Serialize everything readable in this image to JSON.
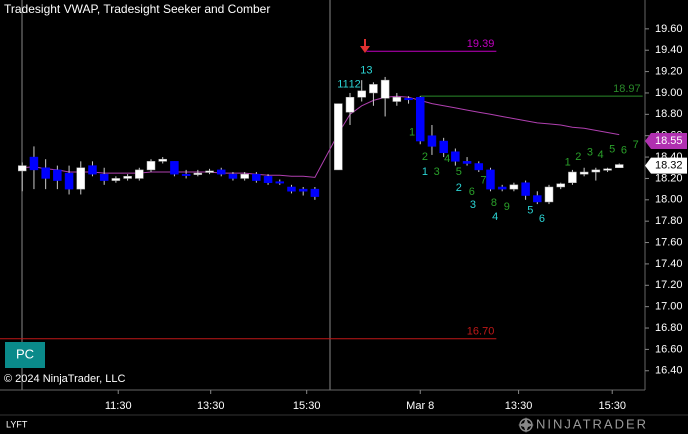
{
  "chart_data": {
    "type": "candlestick",
    "title": "Tradesight VWAP, Tradesight Seeker and Comber",
    "symbol": "LYFT",
    "copyright": "© 2024 NinjaTrader, LLC",
    "badge": "PC",
    "brand": "NINJATRADER",
    "up_color": "#ffffff",
    "down_color": "#0000ff",
    "x": [
      0,
      1,
      2,
      3,
      4,
      5,
      6,
      7,
      8,
      9,
      10,
      11,
      12,
      13,
      14,
      15,
      16,
      17,
      18,
      19,
      20,
      21,
      22,
      23,
      24,
      25,
      27,
      28,
      29,
      30,
      31,
      32,
      33,
      34,
      35,
      36,
      37,
      38,
      39,
      40,
      41,
      42,
      43,
      44,
      45,
      46,
      47,
      48,
      49,
      50,
      51
    ],
    "open": [
      18.27,
      18.4,
      18.3,
      18.28,
      18.25,
      18.1,
      18.32,
      18.24,
      18.18,
      18.2,
      18.2,
      18.28,
      18.36,
      18.36,
      18.24,
      18.24,
      18.26,
      18.28,
      18.24,
      18.2,
      18.24,
      18.22,
      18.17,
      18.12,
      18.1,
      18.1,
      18.28,
      18.82,
      18.96,
      19.0,
      18.95,
      18.92,
      18.95,
      18.96,
      18.6,
      18.55,
      18.45,
      18.36,
      18.34,
      18.28,
      18.12,
      18.1,
      18.16,
      18.04,
      17.98,
      18.12,
      18.16,
      18.24,
      18.26,
      18.28,
      18.3
    ],
    "high": [
      18.35,
      18.5,
      18.38,
      18.32,
      18.32,
      18.36,
      18.36,
      18.3,
      18.22,
      18.24,
      18.3,
      18.38,
      18.4,
      18.36,
      18.28,
      18.28,
      18.29,
      18.3,
      18.26,
      18.26,
      18.26,
      18.24,
      18.19,
      18.14,
      18.12,
      18.12,
      18.9,
      19.0,
      19.12,
      19.1,
      19.15,
      19.0,
      18.97,
      18.97,
      18.7,
      18.58,
      18.48,
      18.4,
      18.36,
      18.3,
      18.14,
      18.16,
      18.18,
      18.08,
      18.14,
      18.16,
      18.28,
      18.3,
      18.3,
      18.3,
      18.34
    ],
    "low": [
      18.08,
      18.1,
      18.1,
      18.1,
      18.05,
      18.05,
      18.22,
      18.14,
      18.16,
      18.18,
      18.18,
      18.26,
      18.34,
      18.22,
      18.2,
      18.22,
      18.24,
      18.22,
      18.18,
      18.18,
      18.16,
      18.14,
      18.14,
      18.06,
      18.04,
      18.0,
      18.28,
      18.7,
      18.92,
      18.88,
      18.78,
      18.88,
      18.9,
      18.52,
      18.42,
      18.4,
      18.32,
      18.32,
      18.26,
      18.08,
      18.08,
      18.08,
      18.0,
      17.96,
      17.96,
      18.1,
      18.14,
      18.22,
      18.18,
      18.26,
      18.3
    ],
    "close": [
      18.32,
      18.28,
      18.2,
      18.18,
      18.1,
      18.3,
      18.24,
      18.18,
      18.2,
      18.22,
      18.28,
      18.36,
      18.38,
      18.24,
      18.23,
      18.25,
      18.27,
      18.24,
      18.2,
      18.24,
      18.18,
      18.16,
      18.16,
      18.08,
      18.08,
      18.03,
      18.9,
      18.96,
      19.02,
      19.08,
      19.12,
      18.96,
      18.94,
      18.55,
      18.5,
      18.44,
      18.36,
      18.34,
      18.28,
      18.1,
      18.1,
      18.14,
      18.04,
      17.98,
      18.12,
      18.15,
      18.26,
      18.26,
      18.28,
      18.29,
      18.33
    ],
    "vwap": {
      "color": "#b040b0",
      "values": [
        18.3,
        18.31,
        18.29,
        18.28,
        18.26,
        18.26,
        18.26,
        18.25,
        18.25,
        18.25,
        18.25,
        18.26,
        18.26,
        18.26,
        18.26,
        18.26,
        18.26,
        18.25,
        18.25,
        18.25,
        18.24,
        18.23,
        18.23,
        18.22,
        18.22,
        18.21,
        18.62,
        18.8,
        18.88,
        18.93,
        18.96,
        18.97,
        18.96,
        18.93,
        18.9,
        18.88,
        18.86,
        18.84,
        18.82,
        18.8,
        18.78,
        18.76,
        18.74,
        18.72,
        18.71,
        18.7,
        18.68,
        18.67,
        18.65,
        18.63,
        18.61
      ]
    },
    "levels": [
      {
        "value": 19.39,
        "color": "#c000c0",
        "xrange": [
          29.4,
          40.5
        ]
      },
      {
        "value": 18.97,
        "color": "#2a8a2a",
        "xrange": [
          34,
          53
        ]
      },
      {
        "value": 16.7,
        "label": "16.70",
        "color": "#c01818",
        "xrange": [
          -1.9,
          40.5
        ]
      }
    ],
    "price_markers": [
      {
        "value": 18.55,
        "bg": "#b030b0",
        "fg": "#ffffff"
      },
      {
        "value": 18.32,
        "bg": "#ffffff",
        "fg": "#000000"
      }
    ],
    "annotations": [
      {
        "text": "11",
        "x": 27.4,
        "y": 19.08,
        "color": "#2bd4d4"
      },
      {
        "text": "12",
        "x": 28.4,
        "y": 19.08,
        "color": "#2bd4d4"
      },
      {
        "text": "13",
        "x": 29.4,
        "y": 19.21,
        "color": "#2bd4d4"
      },
      {
        "text": "1",
        "x": 34.4,
        "y": 18.26,
        "color": "#2bd4d4"
      },
      {
        "text": "2",
        "x": 37.3,
        "y": 18.11,
        "color": "#2bd4d4"
      },
      {
        "text": "3",
        "x": 38.5,
        "y": 17.95,
        "color": "#2bd4d4"
      },
      {
        "text": "4",
        "x": 40.4,
        "y": 17.84,
        "color": "#2bd4d4"
      },
      {
        "text": "5",
        "x": 43.4,
        "y": 17.9,
        "color": "#2bd4d4"
      },
      {
        "text": "6",
        "x": 44.4,
        "y": 17.82,
        "color": "#2bd4d4"
      },
      {
        "text": "1",
        "x": 33.3,
        "y": 18.63,
        "color": "#2aa02a"
      },
      {
        "text": "2",
        "x": 34.4,
        "y": 18.4,
        "color": "#2aa02a"
      },
      {
        "text": "3",
        "x": 35.4,
        "y": 18.26,
        "color": "#2aa02a"
      },
      {
        "text": "4",
        "x": 36.3,
        "y": 18.38,
        "color": "#2aa02a"
      },
      {
        "text": "5",
        "x": 37.3,
        "y": 18.26,
        "color": "#2aa02a"
      },
      {
        "text": "6",
        "x": 38.4,
        "y": 18.07,
        "color": "#2aa02a"
      },
      {
        "text": "7",
        "x": 39.4,
        "y": 18.18,
        "color": "#2aa02a"
      },
      {
        "text": "8",
        "x": 40.3,
        "y": 17.97,
        "color": "#2aa02a"
      },
      {
        "text": "9",
        "x": 41.4,
        "y": 17.93,
        "color": "#2aa02a"
      },
      {
        "text": "1",
        "x": 46.6,
        "y": 18.35,
        "color": "#2aa02a"
      },
      {
        "text": "2",
        "x": 47.5,
        "y": 18.4,
        "color": "#2aa02a"
      },
      {
        "text": "3",
        "x": 48.5,
        "y": 18.44,
        "color": "#2aa02a"
      },
      {
        "text": "4",
        "x": 49.4,
        "y": 18.42,
        "color": "#2aa02a"
      },
      {
        "text": "5",
        "x": 50.4,
        "y": 18.47,
        "color": "#2aa02a"
      },
      {
        "text": "6",
        "x": 51.4,
        "y": 18.46,
        "color": "#2aa02a"
      },
      {
        "text": "7",
        "x": 52.4,
        "y": 18.51,
        "color": "#2aa02a"
      }
    ],
    "xlim": [
      -1.9,
      53.2
    ],
    "xticks": [
      {
        "value": 8.2,
        "label": "11:30"
      },
      {
        "value": 16.1,
        "label": "13:30"
      },
      {
        "value": 24.3,
        "label": "15:30"
      },
      {
        "value": 34,
        "label": "Mar 8"
      },
      {
        "value": 42.4,
        "label": "13:30"
      },
      {
        "value": 50.4,
        "label": "15:30"
      }
    ],
    "ylim": [
      16.22,
      19.87
    ],
    "yticks": [
      {
        "value": 19.6,
        "label": "19.60"
      },
      {
        "value": 19.4,
        "label": "19.40"
      },
      {
        "value": 19.2,
        "label": "19.20"
      },
      {
        "value": 19,
        "label": "19.00"
      },
      {
        "value": 18.8,
        "label": "18.80"
      },
      {
        "value": 18.6,
        "label": "18.60"
      },
      {
        "value": 18.4,
        "label": "18.40"
      },
      {
        "value": 18.2,
        "label": "18.20"
      },
      {
        "value": 18,
        "label": "18.00"
      },
      {
        "value": 17.8,
        "label": "17.80"
      },
      {
        "value": 17.6,
        "label": "17.60"
      },
      {
        "value": 17.4,
        "label": "17.40"
      },
      {
        "value": 17.2,
        "label": "17.20"
      },
      {
        "value": 17,
        "label": "17.00"
      },
      {
        "value": 16.8,
        "label": "16.80"
      },
      {
        "value": 16.6,
        "label": "16.60"
      },
      {
        "value": 16.4,
        "label": "16.40"
      }
    ]
  }
}
